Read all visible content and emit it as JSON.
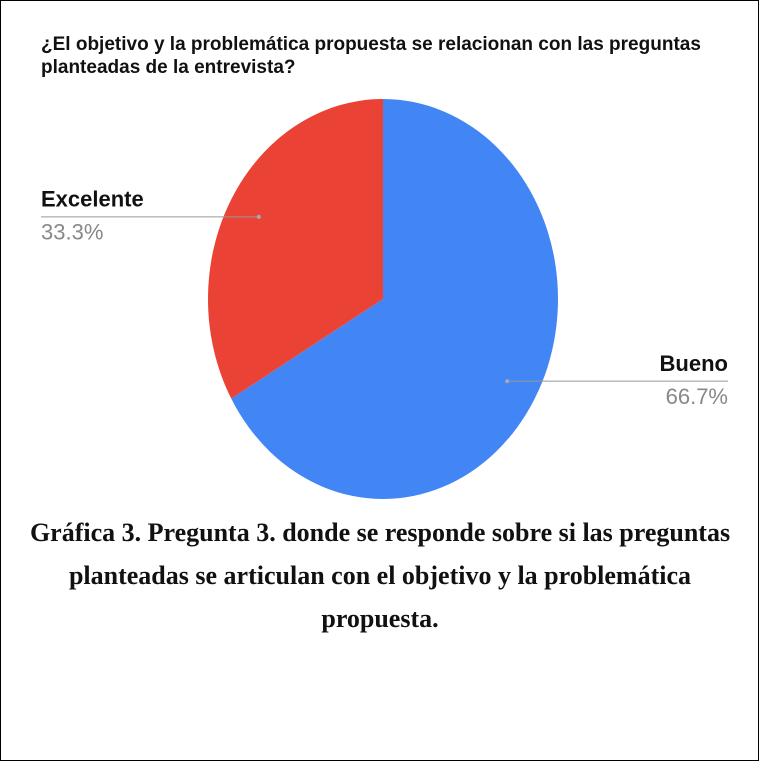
{
  "chart_data": {
    "type": "pie",
    "title": "¿El objetivo y la problemática propuesta se relacionan con las preguntas planteadas de la entrevista?",
    "categories": [
      "Bueno",
      "Excelente"
    ],
    "values": [
      66.7,
      33.3
    ],
    "value_labels": [
      "66.7%",
      "33.3%"
    ],
    "colors": [
      "#4285f4",
      "#ea4335"
    ]
  },
  "caption": "Gráfica 3. Pregunta 3. donde se responde sobre si las preguntas planteadas se articulan con el objetivo y la problemática propuesta."
}
